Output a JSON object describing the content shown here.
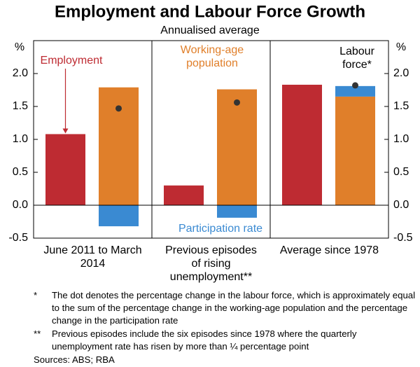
{
  "chart_data": {
    "type": "bar",
    "title": "Employment and Labour Force Growth",
    "subtitle": "Annualised average",
    "y_axis_label": "%",
    "categories": [
      "June 2011 to March 2014",
      "Previous episodes of rising unemployment**",
      "Average since 1978"
    ],
    "series": [
      {
        "name": "Employment",
        "color": "#be2b32",
        "values": [
          1.08,
          0.3,
          1.83
        ]
      },
      {
        "name": "Working-age population",
        "color": "#e07f2a",
        "values": [
          1.79,
          1.76,
          1.65
        ]
      },
      {
        "name": "Participation rate",
        "color": "#3a8ad2",
        "values": [
          -0.32,
          -0.19,
          0.16
        ],
        "stacked_on": 1
      },
      {
        "name": "Labour force*",
        "color": "#333333",
        "values": [
          1.47,
          1.56,
          1.82
        ],
        "kind": "dot"
      }
    ],
    "ylim": [
      -0.5,
      2.5
    ],
    "yticks": [
      -0.5,
      {
        "value": 0,
        "label": "0.0"
      },
      0.5,
      {
        "value": 1,
        "label": "1.0"
      },
      1.5,
      {
        "value": 2,
        "label": "2.0"
      }
    ],
    "footnotes": [
      {
        "marker": "*",
        "text": "The dot denotes the percentage change in the labour force, which is approximately equal to the sum of the percentage change in the working-age population and the percentage change in the participation rate"
      },
      {
        "marker": "**",
        "text": "Previous episodes include the six episodes since 1978 where the quarterly unemployment rate has risen by more than ¼ percentage point"
      }
    ],
    "sources": "Sources: ABS; RBA"
  }
}
